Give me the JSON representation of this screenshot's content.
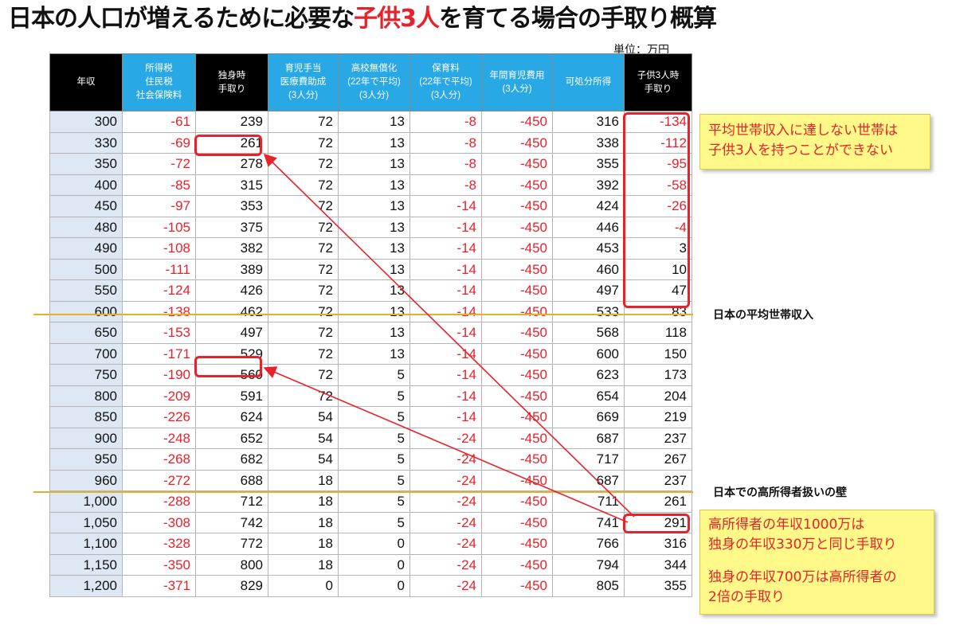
{
  "title": {
    "part1": "日本の人口が増えるために必要な",
    "highlight": "子供3人",
    "part2": "を育てる場合の手取り概算"
  },
  "unit": "単位：万円",
  "columns": [
    {
      "label": "年収",
      "style": "black"
    },
    {
      "label": "所得税\n住民税\n社会保険料",
      "style": "blue"
    },
    {
      "label": "独身時\n手取り",
      "style": "black"
    },
    {
      "label": "育児手当\n医療費助成\n(3人分)",
      "style": "blue"
    },
    {
      "label": "高校無償化\n(22年で平均)\n(3人分)",
      "style": "blue"
    },
    {
      "label": "保育料\n(22年で平均)\n(3人分)",
      "style": "blue"
    },
    {
      "label": "年間育児費用\n(3人分)",
      "style": "blue"
    },
    {
      "label": "可処分所得",
      "style": "blue"
    },
    {
      "label": "子供3人時\n手取り",
      "style": "black"
    }
  ],
  "rows": [
    [
      "300",
      "-61",
      "239",
      "72",
      "13",
      "-8",
      "-450",
      "316",
      "-134"
    ],
    [
      "330",
      "-69",
      "261",
      "72",
      "13",
      "-8",
      "-450",
      "338",
      "-112"
    ],
    [
      "350",
      "-72",
      "278",
      "72",
      "13",
      "-8",
      "-450",
      "355",
      "-95"
    ],
    [
      "400",
      "-85",
      "315",
      "72",
      "13",
      "-8",
      "-450",
      "392",
      "-58"
    ],
    [
      "450",
      "-97",
      "353",
      "72",
      "13",
      "-14",
      "-450",
      "424",
      "-26"
    ],
    [
      "480",
      "-105",
      "375",
      "72",
      "13",
      "-14",
      "-450",
      "446",
      "-4"
    ],
    [
      "490",
      "-108",
      "382",
      "72",
      "13",
      "-14",
      "-450",
      "453",
      "3"
    ],
    [
      "500",
      "-111",
      "389",
      "72",
      "13",
      "-14",
      "-450",
      "460",
      "10"
    ],
    [
      "550",
      "-124",
      "426",
      "72",
      "13",
      "-14",
      "-450",
      "497",
      "47"
    ],
    [
      "600",
      "-138",
      "462",
      "72",
      "13",
      "-14",
      "-450",
      "533",
      "83"
    ],
    [
      "650",
      "-153",
      "497",
      "72",
      "13",
      "-14",
      "-450",
      "568",
      "118"
    ],
    [
      "700",
      "-171",
      "529",
      "72",
      "13",
      "-14",
      "-450",
      "600",
      "150"
    ],
    [
      "750",
      "-190",
      "560",
      "72",
      "5",
      "-14",
      "-450",
      "623",
      "173"
    ],
    [
      "800",
      "-209",
      "591",
      "72",
      "5",
      "-14",
      "-450",
      "654",
      "204"
    ],
    [
      "850",
      "-226",
      "624",
      "54",
      "5",
      "-14",
      "-450",
      "669",
      "219"
    ],
    [
      "900",
      "-248",
      "652",
      "54",
      "5",
      "-24",
      "-450",
      "687",
      "237"
    ],
    [
      "950",
      "-268",
      "682",
      "54",
      "5",
      "-24",
      "-450",
      "717",
      "267"
    ],
    [
      "960",
      "-272",
      "688",
      "18",
      "5",
      "-24",
      "-450",
      "687",
      "237"
    ],
    [
      "1,000",
      "-288",
      "712",
      "18",
      "5",
      "-24",
      "-450",
      "711",
      "261"
    ],
    [
      "1,050",
      "-308",
      "742",
      "18",
      "5",
      "-24",
      "-450",
      "741",
      "291"
    ],
    [
      "1,100",
      "-328",
      "772",
      "18",
      "0",
      "-24",
      "-450",
      "766",
      "316"
    ],
    [
      "1,150",
      "-350",
      "800",
      "18",
      "0",
      "-24",
      "-450",
      "794",
      "344"
    ],
    [
      "1,200",
      "-371",
      "829",
      "0",
      "0",
      "-24",
      "-450",
      "805",
      "355"
    ]
  ],
  "lines": {
    "average": "日本の平均世帯収入",
    "high_income": "日本での高所得者扱いの壁"
  },
  "notes": {
    "note1": {
      "line1": "平均世帯収入に達しない世帯は",
      "line2": "子供3人を持つことができない"
    },
    "note2": {
      "line1": "高所得者の年収1000万は",
      "line2": "独身の年収330万と同じ手取り",
      "line3": "独身の年収700万は高所得者の",
      "line4": "2倍の手取り"
    }
  },
  "colors": {
    "accent_red": "#e8222a",
    "header_blue": "#29a8e6",
    "header_black": "#000000",
    "line_gold": "#e2b12c",
    "note_yellow": "#fff98a"
  }
}
